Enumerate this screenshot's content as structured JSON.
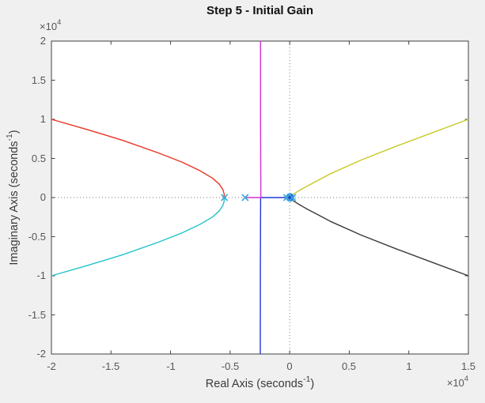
{
  "window": {
    "title": "Step 5 - Initial Gain"
  },
  "chart_data": {
    "type": "line",
    "title": "Step 5 - Initial Gain",
    "xlabel": {
      "base": "Real Axis (seconds",
      "sup": "-1",
      "end": ")"
    },
    "ylabel": {
      "base": "Imaginary Axis (seconds",
      "sup": "-1",
      "end": ")"
    },
    "x_exponent": {
      "base": "×10",
      "sup": "4"
    },
    "y_exponent": {
      "base": "×10",
      "sup": "4"
    },
    "xlim": [
      -20000,
      15000
    ],
    "ylim": [
      -20000,
      20000
    ],
    "grid": false,
    "box": true,
    "xticks": [
      -20000,
      -15000,
      -10000,
      -5000,
      0,
      5000,
      10000,
      15000
    ],
    "xtick_labels": [
      "-2",
      "-1.5",
      "-1",
      "-0.5",
      "0",
      "0.5",
      "1",
      "1.5"
    ],
    "yticks": [
      -20000,
      -15000,
      -10000,
      -5000,
      0,
      5000,
      10000,
      15000,
      20000
    ],
    "ytick_labels": [
      "-2",
      "-1.5",
      "-1",
      "-0.5",
      "0",
      "0.5",
      "1",
      "1.5",
      "2"
    ],
    "reference_lines": {
      "vertical_x": 0,
      "horizontal_y": 0,
      "style": "dotted",
      "color": "#7a7a7a"
    },
    "series": [
      {
        "name": "branch-blue",
        "color": "#2236d4",
        "points": [
          [
            0,
            0
          ],
          [
            -2440,
            0
          ],
          [
            -2450,
            -3000
          ],
          [
            -2460,
            -9000
          ],
          [
            -2470,
            -20000
          ]
        ]
      },
      {
        "name": "branch-magenta",
        "color": "#d431d4",
        "points": [
          [
            -3740,
            0
          ],
          [
            -2420,
            0
          ],
          [
            -2430,
            3000
          ],
          [
            -2445,
            9000
          ],
          [
            -2450,
            20000
          ]
        ]
      },
      {
        "name": "branch-red",
        "color": "#e83424",
        "points": [
          [
            -20000,
            10000
          ],
          [
            -17000,
            8700
          ],
          [
            -14000,
            7300
          ],
          [
            -11000,
            5700
          ],
          [
            -9000,
            4500
          ],
          [
            -7500,
            3400
          ],
          [
            -6500,
            2500
          ],
          [
            -5900,
            1700
          ],
          [
            -5600,
            1000
          ],
          [
            -5500,
            450
          ],
          [
            -5480,
            0
          ]
        ]
      },
      {
        "name": "branch-cyan",
        "color": "#25c3cb",
        "points": [
          [
            -20000,
            -10000
          ],
          [
            -17000,
            -8700
          ],
          [
            -14000,
            -7300
          ],
          [
            -11000,
            -5700
          ],
          [
            -9000,
            -4500
          ],
          [
            -7500,
            -3400
          ],
          [
            -6500,
            -2500
          ],
          [
            -5900,
            -1700
          ],
          [
            -5600,
            -1000
          ],
          [
            -5500,
            -450
          ],
          [
            -5480,
            0
          ]
        ]
      },
      {
        "name": "branch-yellow",
        "color": "#c9c929",
        "points": [
          [
            150,
            250
          ],
          [
            800,
            900
          ],
          [
            1500,
            1500
          ],
          [
            2500,
            2300
          ],
          [
            3500,
            3100
          ],
          [
            6000,
            4800
          ],
          [
            9000,
            6600
          ],
          [
            12000,
            8300
          ],
          [
            15000,
            10000
          ]
        ]
      },
      {
        "name": "branch-black",
        "color": "#3a3a3a",
        "points": [
          [
            150,
            -250
          ],
          [
            800,
            -900
          ],
          [
            1500,
            -1500
          ],
          [
            2500,
            -2300
          ],
          [
            3500,
            -3100
          ],
          [
            6000,
            -4800
          ],
          [
            9000,
            -6600
          ],
          [
            12000,
            -8300
          ],
          [
            15000,
            -10000
          ]
        ]
      }
    ],
    "pole_markers": {
      "symbol": "x",
      "color": "#3fa9dc",
      "points": [
        [
          -5480,
          0
        ],
        [
          -3740,
          0
        ],
        [
          -250,
          0
        ],
        [
          250,
          0
        ]
      ]
    },
    "gain_marker": {
      "symbol": "filled-circle",
      "fill": "#2447c9",
      "ring": "#58b7e4",
      "point": [
        30,
        20
      ]
    }
  },
  "style": {
    "figure_bg": "#f0f0f0",
    "plot_bg": "#ffffff",
    "axis_color": "#404040"
  }
}
